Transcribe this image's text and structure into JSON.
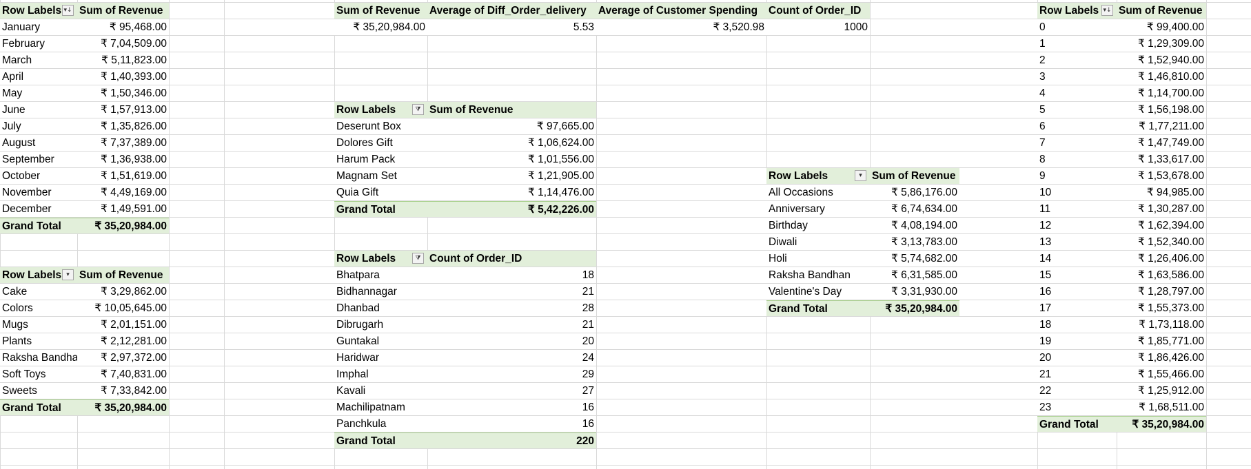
{
  "pivot_month": {
    "headers": [
      "Row Labels",
      "Sum of Revenue"
    ],
    "rows": [
      [
        "January",
        "₹ 95,468.00"
      ],
      [
        "February",
        "₹ 7,04,509.00"
      ],
      [
        "March",
        "₹ 5,11,823.00"
      ],
      [
        "April",
        "₹ 1,40,393.00"
      ],
      [
        "May",
        "₹ 1,50,346.00"
      ],
      [
        "June",
        "₹ 1,57,913.00"
      ],
      [
        "July",
        "₹ 1,35,826.00"
      ],
      [
        "August",
        "₹ 7,37,389.00"
      ],
      [
        "September",
        "₹ 1,36,938.00"
      ],
      [
        "October",
        "₹ 1,51,619.00"
      ],
      [
        "November",
        "₹ 4,49,169.00"
      ],
      [
        "December",
        "₹ 1,49,591.00"
      ]
    ],
    "total": [
      "Grand Total",
      "₹ 35,20,984.00"
    ]
  },
  "pivot_category": {
    "headers": [
      "Row Labels",
      "Sum of Revenue"
    ],
    "rows": [
      [
        "Cake",
        "₹ 3,29,862.00"
      ],
      [
        "Colors",
        "₹ 10,05,645.00"
      ],
      [
        "Mugs",
        "₹ 2,01,151.00"
      ],
      [
        "Plants",
        "₹ 2,12,281.00"
      ],
      [
        "Raksha Bandha",
        "₹ 2,97,372.00"
      ],
      [
        "Soft Toys",
        "₹ 7,40,831.00"
      ],
      [
        "Sweets",
        "₹ 7,33,842.00"
      ]
    ],
    "total": [
      "Grand Total",
      "₹ 35,20,984.00"
    ]
  },
  "kpis": {
    "headers": [
      "Sum of Revenue",
      "Average of Diff_Order_delivery",
      "Average of Customer Spending",
      "Count of Order_ID"
    ],
    "values": [
      "₹ 35,20,984.00",
      "5.53",
      "₹ 3,520.98",
      "1000"
    ]
  },
  "pivot_product": {
    "headers": [
      "Row Labels",
      "Sum of Revenue"
    ],
    "rows": [
      [
        "Deserunt Box",
        "₹ 97,665.00"
      ],
      [
        "Dolores Gift",
        "₹ 1,06,624.00"
      ],
      [
        "Harum Pack",
        "₹ 1,01,556.00"
      ],
      [
        "Magnam Set",
        "₹ 1,21,905.00"
      ],
      [
        "Quia Gift",
        "₹ 1,14,476.00"
      ]
    ],
    "total": [
      "Grand Total",
      "₹ 5,42,226.00"
    ]
  },
  "pivot_city": {
    "headers": [
      "Row Labels",
      "Count of Order_ID"
    ],
    "rows": [
      [
        "Bhatpara",
        "18"
      ],
      [
        "Bidhannagar",
        "21"
      ],
      [
        "Dhanbad",
        "28"
      ],
      [
        "Dibrugarh",
        "21"
      ],
      [
        "Guntakal",
        "20"
      ],
      [
        "Haridwar",
        "24"
      ],
      [
        "Imphal",
        "29"
      ],
      [
        "Kavali",
        "27"
      ],
      [
        "Machilipatnam",
        "16"
      ],
      [
        "Panchkula",
        "16"
      ]
    ],
    "total": [
      "Grand Total",
      "220"
    ]
  },
  "pivot_occasion": {
    "headers": [
      "Row Labels",
      "Sum of Revenue"
    ],
    "rows": [
      [
        "All Occasions",
        "₹ 5,86,176.00"
      ],
      [
        "Anniversary",
        "₹ 6,74,634.00"
      ],
      [
        "Birthday",
        "₹ 4,08,194.00"
      ],
      [
        "Diwali",
        "₹ 3,13,783.00"
      ],
      [
        "Holi",
        "₹ 5,74,682.00"
      ],
      [
        "Raksha Bandhan",
        "₹ 6,31,585.00"
      ],
      [
        "Valentine's Day",
        "₹ 3,31,930.00"
      ]
    ],
    "total": [
      "Grand Total",
      "₹ 35,20,984.00"
    ]
  },
  "pivot_hour": {
    "headers": [
      "Row Labels",
      "Sum of Revenue"
    ],
    "rows": [
      [
        "0",
        "₹ 99,400.00"
      ],
      [
        "1",
        "₹ 1,29,309.00"
      ],
      [
        "2",
        "₹ 1,52,940.00"
      ],
      [
        "3",
        "₹ 1,46,810.00"
      ],
      [
        "4",
        "₹ 1,14,700.00"
      ],
      [
        "5",
        "₹ 1,56,198.00"
      ],
      [
        "6",
        "₹ 1,77,211.00"
      ],
      [
        "7",
        "₹ 1,47,749.00"
      ],
      [
        "8",
        "₹ 1,33,617.00"
      ],
      [
        "9",
        "₹ 1,53,678.00"
      ],
      [
        "10",
        "₹ 94,985.00"
      ],
      [
        "11",
        "₹ 1,30,287.00"
      ],
      [
        "12",
        "₹ 1,62,394.00"
      ],
      [
        "13",
        "₹ 1,52,340.00"
      ],
      [
        "14",
        "₹ 1,26,406.00"
      ],
      [
        "15",
        "₹ 1,63,586.00"
      ],
      [
        "16",
        "₹ 1,28,797.00"
      ],
      [
        "17",
        "₹ 1,55,373.00"
      ],
      [
        "18",
        "₹ 1,73,118.00"
      ],
      [
        "19",
        "₹ 1,85,771.00"
      ],
      [
        "20",
        "₹ 1,86,426.00"
      ],
      [
        "21",
        "₹ 1,55,466.00"
      ],
      [
        "22",
        "₹ 1,25,912.00"
      ],
      [
        "23",
        "₹ 1,68,511.00"
      ]
    ],
    "total": [
      "Grand Total",
      "₹ 35,20,984.00"
    ]
  },
  "icons": {
    "sort_desc": "sort-descending-icon",
    "filter": "filter-icon",
    "dropdown": "dropdown-icon"
  }
}
